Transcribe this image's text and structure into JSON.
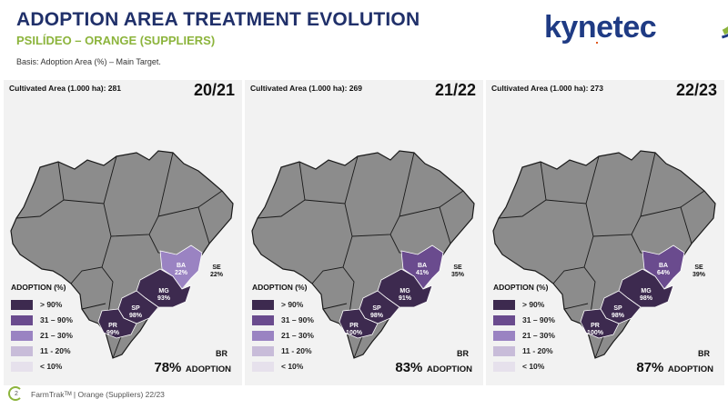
{
  "header": {
    "title": "ADOPTION AREA TREATMENT EVOLUTION",
    "subtitle": "PSILÍDEO – ORANGE (SUPPLIERS)",
    "basis": "Basis: Adoption Area (%) – Main Target."
  },
  "logo": {
    "text": "kynetec"
  },
  "colors": {
    "gt90": "#3d2a4f",
    "r31_90": "#6a4b8e",
    "r21_30": "#9a83c2",
    "r11_20": "#c8bcd9",
    "lt10": "#e6e1ec",
    "country": "#8c8c8c",
    "border": "#1a1a1a",
    "title": "#20306a",
    "accent": "#8cb43c"
  },
  "legend": {
    "title": "ADOPTION (%)",
    "items": [
      {
        "label": "> 90%",
        "color_key": "gt90"
      },
      {
        "label": "31 – 90%",
        "color_key": "r31_90"
      },
      {
        "label": "21 – 30%",
        "color_key": "r21_30"
      },
      {
        "label": "11 - 20%",
        "color_key": "r11_20"
      },
      {
        "label": "< 10%",
        "color_key": "lt10"
      }
    ]
  },
  "panels": [
    {
      "cultivated": "Cultivated Area (1.000 ha): 281",
      "year": "20/21",
      "br_label": "BR",
      "adoption_value": "78%",
      "adoption_word": "ADOPTION",
      "states": {
        "BA": {
          "name": "BA",
          "value": "22%",
          "color_key": "r21_30"
        },
        "SE": {
          "name": "SE",
          "value": "22%"
        },
        "MG": {
          "name": "MG",
          "value": "93%",
          "color_key": "gt90"
        },
        "SP": {
          "name": "SP",
          "value": "98%",
          "color_key": "gt90"
        },
        "PR": {
          "name": "PR",
          "value": "99%",
          "color_key": "gt90"
        }
      }
    },
    {
      "cultivated": "Cultivated Area (1.000 ha): 269",
      "year": "21/22",
      "br_label": "BR",
      "adoption_value": "83%",
      "adoption_word": "ADOPTION",
      "states": {
        "BA": {
          "name": "BA",
          "value": "41%",
          "color_key": "r31_90"
        },
        "SE": {
          "name": "SE",
          "value": "35%"
        },
        "MG": {
          "name": "MG",
          "value": "91%",
          "color_key": "gt90"
        },
        "SP": {
          "name": "SP",
          "value": "98%",
          "color_key": "gt90"
        },
        "PR": {
          "name": "PR",
          "value": "100%",
          "color_key": "gt90"
        }
      }
    },
    {
      "cultivated": "Cultivated Area (1.000 ha): 273",
      "year": "22/23",
      "br_label": "BR",
      "adoption_value": "87%",
      "adoption_word": "ADOPTION",
      "states": {
        "BA": {
          "name": "BA",
          "value": "64%",
          "color_key": "r31_90"
        },
        "SE": {
          "name": "SE",
          "value": "39%"
        },
        "MG": {
          "name": "MG",
          "value": "98%",
          "color_key": "gt90"
        },
        "SP": {
          "name": "SP",
          "value": "98%",
          "color_key": "gt90"
        },
        "PR": {
          "name": "PR",
          "value": "100%",
          "color_key": "gt90"
        }
      }
    }
  ],
  "footer": {
    "page_number": "2",
    "text": "FarmTrakᵀᴹ | Orange (Suppliers) 22/23"
  }
}
